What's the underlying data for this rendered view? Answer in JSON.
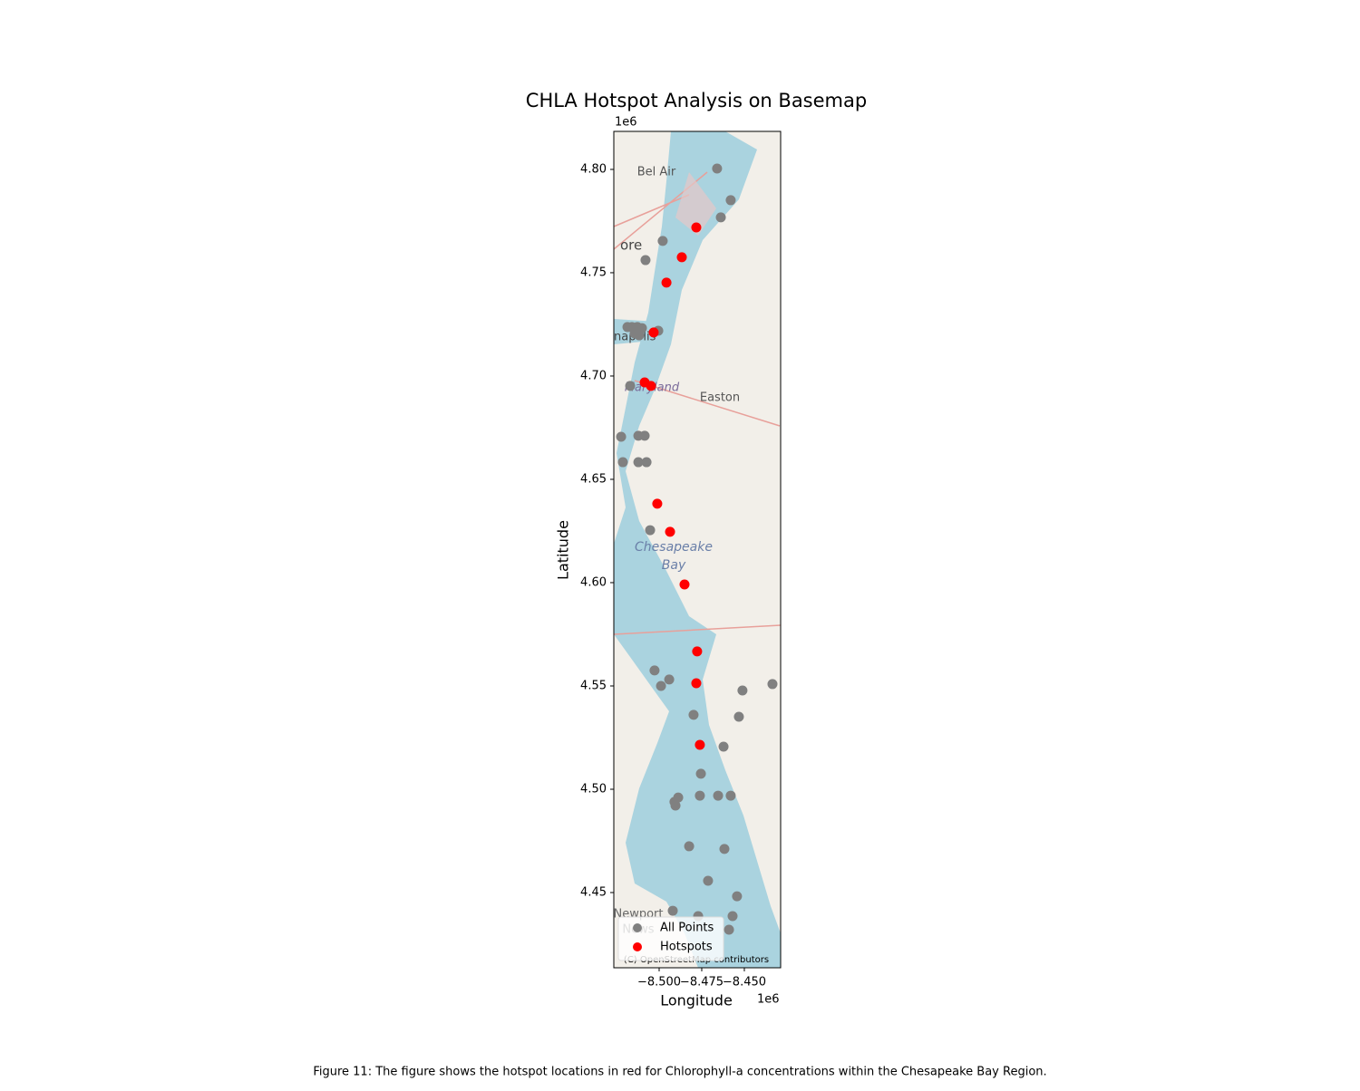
{
  "chart_data": {
    "type": "scatter",
    "title": "CHLA Hotspot Analysis on Basemap",
    "x_label": "Longitude",
    "y_label": "Latitude",
    "x_offset_label": "1e6",
    "y_offset_label": "1e6",
    "caption": "Figure 11: The figure shows the hotspot locations in red for Chlorophyll-a concentrations within the Chesapeake Bay Region.",
    "xlim": [
      -8526600,
      -8428700
    ],
    "ylim": [
      4413600,
      4818400
    ],
    "xticks": [
      {
        "value": -8500000,
        "label": "−8.500"
      },
      {
        "value": -8475000,
        "label": "−8.475"
      },
      {
        "value": -8450000,
        "label": "−8.450"
      }
    ],
    "yticks": [
      {
        "value": 4450000,
        "label": "4.45"
      },
      {
        "value": 4500000,
        "label": "4.50"
      },
      {
        "value": 4550000,
        "label": "4.55"
      },
      {
        "value": 4600000,
        "label": "4.60"
      },
      {
        "value": 4650000,
        "label": "4.65"
      },
      {
        "value": 4700000,
        "label": "4.70"
      },
      {
        "value": 4750000,
        "label": "4.75"
      },
      {
        "value": 4800000,
        "label": "4.80"
      }
    ],
    "legend": "lower left",
    "basemap": {
      "labels": [
        "Bel Air",
        "ore",
        "napolis",
        "Maryland",
        "Easton",
        "Chesapeake",
        "Bay",
        "Newport",
        "News"
      ],
      "attribution": "(C) OpenStreetMap contributors"
    },
    "series": [
      {
        "name": "All Points",
        "color": "#808080",
        "x": [
          -8466000,
          -8458000,
          -8463800,
          -8497900,
          -8508000,
          -8518600,
          -8516000,
          -8512800,
          -8510100,
          -8514400,
          -8511700,
          -8500500,
          -8517000,
          -8522300,
          -8512200,
          -8508500,
          -8521300,
          -8512200,
          -8507400,
          -8505300,
          -8502700,
          -8494100,
          -8498900,
          -8479800,
          -8451100,
          -8453200,
          -8433500,
          -8462200,
          -8475500,
          -8476100,
          -8465400,
          -8458000,
          -8488800,
          -8491000,
          -8490400,
          -8482400,
          -8461700,
          -8471300,
          -8454300,
          -8492000,
          -8477100,
          -8456900,
          -8459000
        ],
        "y": [
          4800400,
          4785100,
          4776800,
          4765400,
          4756100,
          4723700,
          4723700,
          4723700,
          4723200,
          4720600,
          4719700,
          4721900,
          4695200,
          4670600,
          4671100,
          4671100,
          4658300,
          4658300,
          4658300,
          4625400,
          4557500,
          4553100,
          4550000,
          4536000,
          4547800,
          4535100,
          4550900,
          4520600,
          4507500,
          4496900,
          4496900,
          4496900,
          4496000,
          4493900,
          4492100,
          4472400,
          4471100,
          4455700,
          4448200,
          4441200,
          4438600,
          4438600,
          4432000
        ]
      },
      {
        "name": "Hotspots",
        "color": "#ff0000",
        "x": [
          -8478200,
          -8486700,
          -8495700,
          -8503200,
          -8508500,
          -8504800,
          -8501100,
          -8493600,
          -8485100,
          -8477700,
          -8478200,
          -8476100
        ],
        "y": [
          4771900,
          4757500,
          4745200,
          4721100,
          4696900,
          4695200,
          4638200,
          4624600,
          4599100,
          4566700,
          4551300,
          4521500
        ]
      }
    ]
  }
}
